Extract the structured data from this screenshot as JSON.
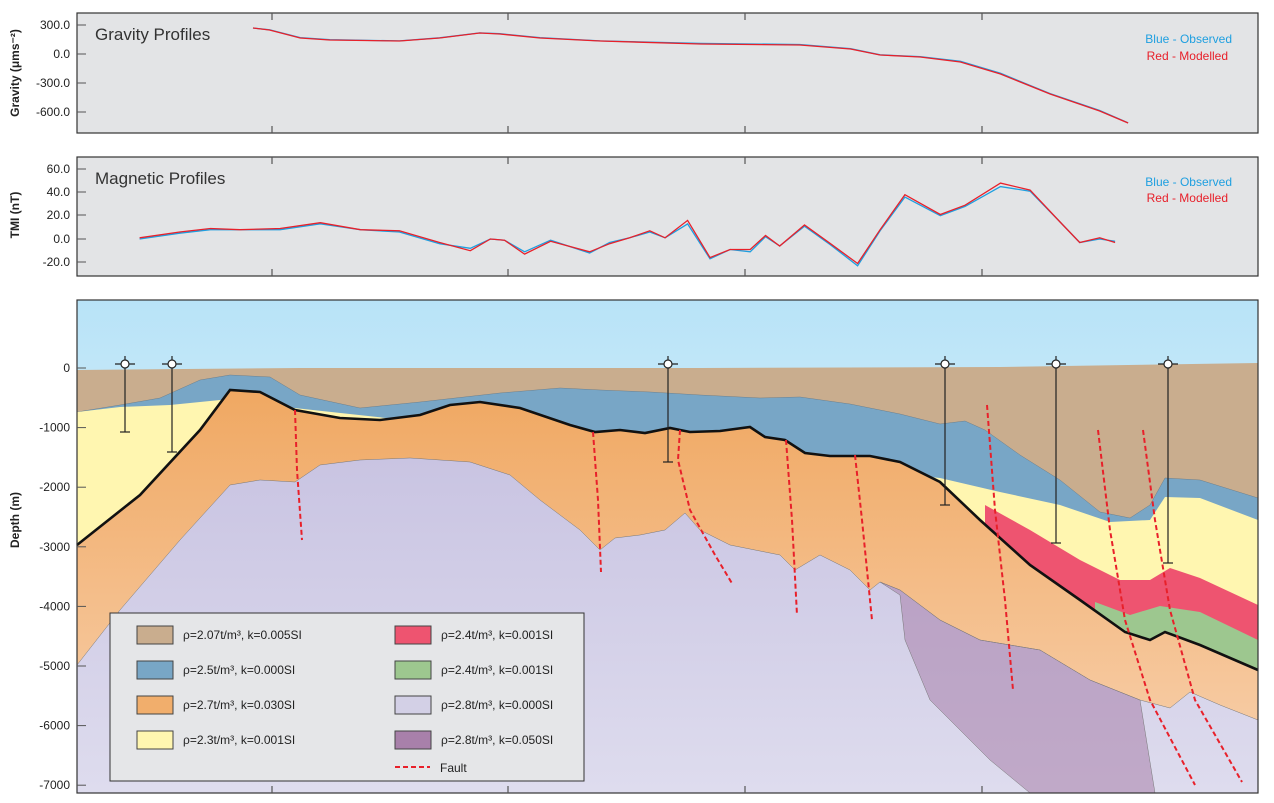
{
  "chart_data": [
    {
      "type": "line",
      "title": "Gravity Profiles",
      "ylabel": "Gravity (μms⁻²)",
      "ylim": [
        -800,
        400
      ],
      "yticks": [
        "300.0",
        "0.0",
        "-300.0",
        "-600.0"
      ],
      "grid": false,
      "legend_position": "top-right",
      "x": [
        14.9,
        16.3,
        18.9,
        21.4,
        27.3,
        30.7,
        34.1,
        35.8,
        39.2,
        44.3,
        52.8,
        61.2,
        65.5,
        68.0,
        71.4,
        74.8,
        78.2,
        82.4,
        86.6,
        89.0
      ],
      "series": [
        {
          "name": "Blue - Observed",
          "color": "#1e9fe0",
          "values": [
            269,
            250,
            170,
            148,
            136,
            168,
            218,
            210,
            170,
            136,
            110,
            98,
            55,
            -8,
            -28,
            -75,
            -200,
            -410,
            -585,
            -712
          ]
        },
        {
          "name": "Red - Modelled",
          "color": "#e8202a",
          "values": [
            269,
            248,
            166,
            145,
            134,
            166,
            217,
            207,
            166,
            134,
            103,
            93,
            52,
            -10,
            -31,
            -83,
            -207,
            -414,
            -590,
            -714
          ]
        }
      ]
    },
    {
      "type": "line",
      "title": "Magnetic Profiles",
      "ylabel": "TMI (nT)",
      "ylim": [
        -30,
        70
      ],
      "yticks": [
        "60.0",
        "40.0",
        "20.0",
        "0.0",
        "-20.0"
      ],
      "grid": false,
      "legend_position": "top-right",
      "x": [
        5.3,
        8.7,
        11.3,
        13.8,
        17.2,
        20.6,
        24.0,
        27.3,
        30.7,
        33.3,
        35.0,
        36.2,
        37.9,
        40.1,
        43.4,
        45.1,
        46.8,
        48.5,
        49.8,
        51.7,
        53.6,
        55.3,
        57.0,
        58.3,
        59.5,
        61.6,
        63.8,
        66.1,
        68.0,
        70.1,
        73.1,
        75.2,
        78.2,
        80.7,
        83.2,
        84.9,
        86.6,
        87.9
      ],
      "series": [
        {
          "name": "Blue - Observed",
          "color": "#1e9fe0",
          "values": [
            0,
            5,
            8,
            8,
            8,
            13,
            8,
            6,
            -4,
            -8,
            0,
            -1,
            -11,
            -1,
            -12,
            -3,
            1,
            6,
            1,
            13,
            -17,
            -9,
            -11,
            2,
            -6,
            11,
            -5,
            -23,
            7,
            36,
            20,
            28,
            45,
            41,
            15,
            -3,
            0,
            -2
          ]
        },
        {
          "name": "Red - Modelled",
          "color": "#e8202a",
          "values": [
            1,
            6,
            9,
            8,
            9,
            14,
            8,
            7,
            -3,
            -10,
            0,
            -1,
            -13,
            -2,
            -11,
            -4,
            1,
            7,
            1,
            16,
            -16,
            -9,
            -9,
            3,
            -6,
            12,
            -4,
            -21,
            8,
            38,
            21,
            29,
            48,
            42,
            15,
            -3,
            1,
            -3
          ]
        }
      ]
    }
  ],
  "section": {
    "ylabel": "Depth (m)",
    "depth_ticks": [
      "0",
      "-1000",
      "-2000",
      "-3000",
      "-4000",
      "-5000",
      "-6000",
      "-7000"
    ],
    "legend": [
      {
        "label": "ρ=2.07t/m³,  k=0.005SI",
        "color": "#c9ad8e"
      },
      {
        "label": "ρ=2.5t/m³,  k=0.000SI",
        "color": "#78a6c6"
      },
      {
        "label": "ρ=2.7t/m³,  k=0.030SI",
        "color": "#f1ae6c"
      },
      {
        "label": "ρ=2.3t/m³,  k=0.001SI",
        "color": "#fff6b0"
      },
      {
        "label": "ρ=2.4t/m³,  k=0.001SI",
        "color": "#ee5470"
      },
      {
        "label": "ρ=2.4t/m³,  k=0.001SI",
        "color": "#9dc78f"
      },
      {
        "label": "ρ=2.8t/m³,  k=0.000SI",
        "color": "#d3d0e6"
      },
      {
        "label": "ρ=2.8t/m³,  k=0.050SI",
        "color": "#a880aa"
      }
    ],
    "fault_label": "Fault",
    "fault_color": "#e8202a"
  }
}
